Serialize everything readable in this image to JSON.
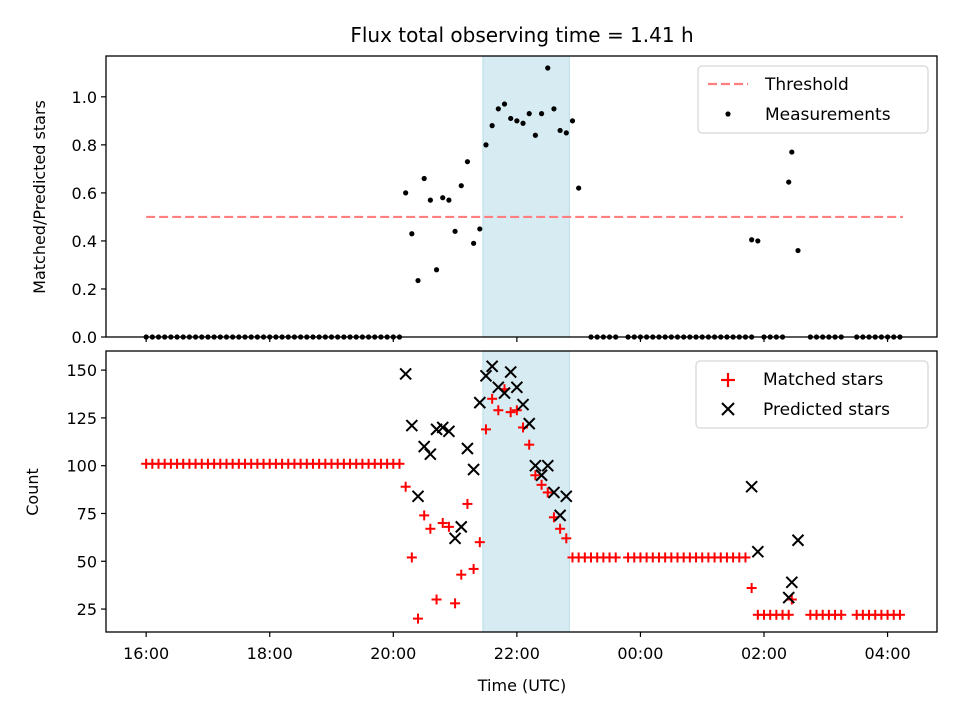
{
  "chart_data": [
    {
      "type": "scatter",
      "title": "Flux total observing time = 1.41 h",
      "xlabel": "",
      "ylabel": "Matched/Predicted stars",
      "x_unit": "hours since 16:00 UTC",
      "xlim": [
        -0.65,
        12.8
      ],
      "ylim": [
        0,
        1.17
      ],
      "yticks": [
        0.0,
        0.2,
        0.4,
        0.6,
        0.8,
        1.0
      ],
      "ytick_labels": [
        "0.0",
        "0.2",
        "0.4",
        "0.6",
        "0.8",
        "1.0"
      ],
      "xticks": [
        0,
        2,
        4,
        6,
        8,
        10,
        12
      ],
      "show_xtick_labels": false,
      "shaded_span": {
        "x0": 5.45,
        "x1": 6.85,
        "color": "#add8e6"
      },
      "threshold": {
        "name": "Threshold",
        "y": 0.5,
        "x0": 0,
        "x1": 12.25,
        "color": "#ff7f7f",
        "style": "dashed"
      },
      "legend": {
        "position": "upper right",
        "entries": [
          "Threshold",
          "Measurements"
        ]
      },
      "series": [
        {
          "name": "Measurements",
          "color": "#000000",
          "marker": "dot",
          "x": [
            4.2,
            4.3,
            4.4,
            4.5,
            4.6,
            4.7,
            4.8,
            4.9,
            5.0,
            5.1,
            5.2,
            5.3,
            5.4,
            5.5,
            5.6,
            5.7,
            5.8,
            5.9,
            6.0,
            6.1,
            6.2,
            6.3,
            6.4,
            6.5,
            6.6,
            6.7,
            6.8,
            6.9,
            7.0,
            9.8,
            9.9,
            10.4,
            10.45,
            10.55
          ],
          "y": [
            0.6,
            0.43,
            0.235,
            0.66,
            0.57,
            0.28,
            0.58,
            0.57,
            0.44,
            0.63,
            0.73,
            0.39,
            0.45,
            0.8,
            0.88,
            0.95,
            0.97,
            0.91,
            0.9,
            0.89,
            0.93,
            0.84,
            0.93,
            1.12,
            0.95,
            0.86,
            0.85,
            0.9,
            0.62,
            0.405,
            0.4,
            0.645,
            0.77,
            0.36
          ],
          "zero_run_ranges": [
            [
              0,
              4.15,
              0.1
            ],
            [
              7.2,
              7.6,
              0.1
            ],
            [
              7.8,
              9.8,
              0.1
            ],
            [
              10.0,
              10.3,
              0.1
            ],
            [
              10.75,
              11.3,
              0.1
            ],
            [
              11.5,
              12.25,
              0.1
            ]
          ]
        }
      ]
    },
    {
      "type": "scatter",
      "title": "",
      "xlabel": "Time (UTC)",
      "ylabel": "Count",
      "x_unit": "hours since 16:00 UTC",
      "xlim": [
        -0.65,
        12.8
      ],
      "ylim": [
        13,
        160
      ],
      "yticks": [
        25,
        50,
        75,
        100,
        125,
        150
      ],
      "ytick_labels": [
        "25",
        "50",
        "75",
        "100",
        "125",
        "150"
      ],
      "xticks": [
        0,
        2,
        4,
        6,
        8,
        10,
        12
      ],
      "xtick_labels": [
        "16:00",
        "18:00",
        "20:00",
        "22:00",
        "00:00",
        "02:00",
        "04:00"
      ],
      "shaded_span": {
        "x0": 5.45,
        "x1": 6.85,
        "color": "#add8e6"
      },
      "legend": {
        "position": "upper right",
        "entries": [
          "Matched stars",
          "Predicted stars"
        ]
      },
      "series": [
        {
          "name": "Matched stars",
          "color": "#ff0000",
          "marker": "plus",
          "x": [
            4.2,
            4.3,
            4.4,
            4.5,
            4.6,
            4.7,
            4.8,
            4.9,
            5.0,
            5.1,
            5.2,
            5.3,
            5.4,
            5.5,
            5.6,
            5.7,
            5.8,
            5.9,
            6.0,
            6.1,
            6.2,
            6.3,
            6.4,
            6.5,
            6.6,
            6.7,
            6.8,
            6.9,
            9.8,
            10.4,
            10.45
          ],
          "y": [
            89,
            52,
            20,
            74,
            67,
            30,
            70,
            68,
            28,
            43,
            80,
            46,
            60,
            119,
            135,
            129,
            140,
            128,
            129,
            120,
            111,
            95,
            90,
            86,
            73,
            67,
            62,
            52,
            36,
            22,
            30
          ],
          "runs": [
            {
              "x0": 0,
              "x1": 4.15,
              "step": 0.1,
              "y": 101
            },
            {
              "x0": 7.0,
              "x1": 7.6,
              "step": 0.1,
              "y": 52
            },
            {
              "x0": 7.8,
              "x1": 9.7,
              "step": 0.1,
              "y": 52
            },
            {
              "x0": 9.9,
              "x1": 10.3,
              "step": 0.1,
              "y": 22
            },
            {
              "x0": 10.75,
              "x1": 11.3,
              "step": 0.1,
              "y": 22
            },
            {
              "x0": 11.5,
              "x1": 12.25,
              "step": 0.1,
              "y": 22
            }
          ]
        },
        {
          "name": "Predicted stars",
          "color": "#000000",
          "marker": "x",
          "x": [
            4.2,
            4.3,
            4.4,
            4.5,
            4.6,
            4.7,
            4.8,
            4.9,
            5.0,
            5.1,
            5.2,
            5.3,
            5.4,
            5.5,
            5.6,
            5.7,
            5.8,
            5.9,
            6.0,
            6.1,
            6.2,
            6.3,
            6.4,
            6.5,
            6.6,
            6.7,
            6.8,
            9.8,
            9.9,
            10.4,
            10.45,
            10.55
          ],
          "y": [
            148,
            121,
            84,
            110,
            106,
            119,
            120,
            118,
            62,
            68,
            109,
            98,
            133,
            147,
            152,
            141,
            138,
            149,
            141,
            132,
            122,
            100,
            95,
            100,
            86,
            74,
            84,
            89,
            55,
            31,
            39,
            61
          ]
        }
      ]
    }
  ]
}
